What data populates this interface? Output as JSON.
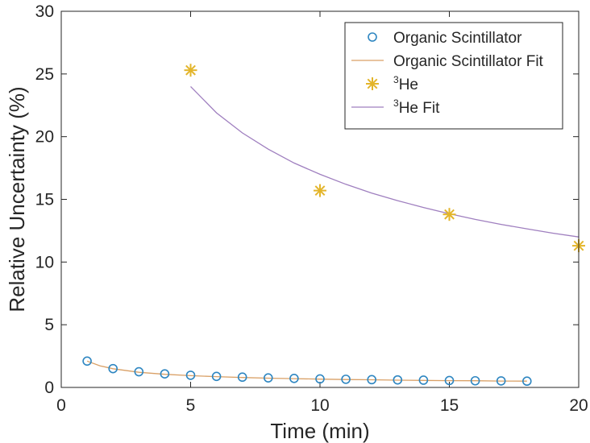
{
  "chart_data": {
    "type": "scatter",
    "title": "",
    "xlabel": "Time (min)",
    "ylabel": "Relative Uncertainty (%)",
    "xlim": [
      0,
      20
    ],
    "ylim": [
      0,
      30
    ],
    "xticks": [
      0,
      5,
      10,
      15,
      20
    ],
    "yticks": [
      0,
      5,
      10,
      15,
      20,
      25,
      30
    ],
    "grid": false,
    "legend_position": "top-right",
    "series": [
      {
        "name": "Organic Scintillator",
        "kind": "markers",
        "marker": "circle",
        "color": "#2E86C1",
        "x": [
          1,
          2,
          3,
          4,
          5,
          6,
          7,
          8,
          9,
          10,
          11,
          12,
          13,
          14,
          15,
          16,
          17,
          18
        ],
        "y": [
          2.1,
          1.5,
          1.25,
          1.08,
          0.97,
          0.88,
          0.82,
          0.76,
          0.72,
          0.68,
          0.65,
          0.62,
          0.6,
          0.58,
          0.55,
          0.53,
          0.52,
          0.5
        ]
      },
      {
        "name": "Organic Scintillator Fit",
        "kind": "line",
        "color": "#D9A066",
        "x": [
          1,
          1.5,
          2,
          3,
          4,
          5,
          6,
          7,
          8,
          9,
          10,
          11,
          12,
          13,
          14,
          15,
          16,
          17,
          18
        ],
        "y": [
          2.1,
          1.72,
          1.49,
          1.21,
          1.05,
          0.94,
          0.86,
          0.79,
          0.74,
          0.7,
          0.66,
          0.63,
          0.61,
          0.58,
          0.56,
          0.54,
          0.53,
          0.51,
          0.5
        ]
      },
      {
        "name": "He",
        "name_superscript": "3",
        "kind": "markers",
        "marker": "asterisk",
        "color": "#E3B52B",
        "x": [
          5,
          10,
          15,
          20
        ],
        "y": [
          25.3,
          15.7,
          13.8,
          11.3
        ]
      },
      {
        "name": "He Fit",
        "name_superscript": "3",
        "kind": "line",
        "color": "#9F7FBF",
        "x": [
          5,
          6,
          7,
          8,
          9,
          10,
          11,
          12,
          13,
          14,
          15,
          16,
          17,
          18,
          19,
          20
        ],
        "y": [
          24.0,
          21.9,
          20.3,
          19.0,
          17.9,
          17.0,
          16.2,
          15.5,
          14.9,
          14.35,
          13.85,
          13.4,
          13.0,
          12.65,
          12.3,
          12.0
        ]
      }
    ]
  }
}
